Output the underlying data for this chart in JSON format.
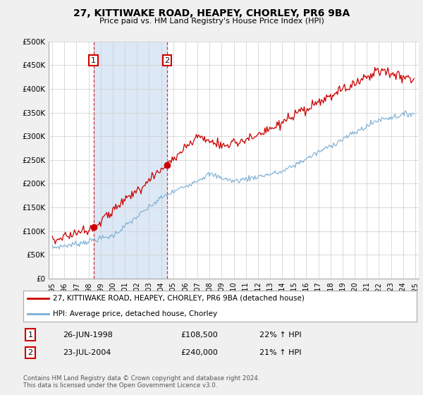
{
  "title": "27, KITTIWAKE ROAD, HEAPEY, CHORLEY, PR6 9BA",
  "subtitle": "Price paid vs. HM Land Registry's House Price Index (HPI)",
  "ylim": [
    0,
    500000
  ],
  "yticks": [
    0,
    50000,
    100000,
    150000,
    200000,
    250000,
    300000,
    350000,
    400000,
    450000,
    500000
  ],
  "ytick_labels": [
    "£0",
    "£50K",
    "£100K",
    "£150K",
    "£200K",
    "£250K",
    "£300K",
    "£350K",
    "£400K",
    "£450K",
    "£500K"
  ],
  "bg_color": "#f0f0f0",
  "plot_bg_color": "#ffffff",
  "shade_color": "#dce8f5",
  "red_color": "#cc0000",
  "blue_color": "#7aaed4",
  "transaction1_date": "26-JUN-1998",
  "transaction1_price": 108500,
  "transaction1_hpi": "22% ↑ HPI",
  "transaction2_date": "23-JUL-2004",
  "transaction2_price": 240000,
  "transaction2_hpi": "21% ↑ HPI",
  "legend_label_red": "27, KITTIWAKE ROAD, HEAPEY, CHORLEY, PR6 9BA (detached house)",
  "legend_label_blue": "HPI: Average price, detached house, Chorley",
  "footer": "Contains HM Land Registry data © Crown copyright and database right 2024.\nThis data is licensed under the Open Government Licence v3.0.",
  "x_start_year": 1995,
  "x_end_year": 2025
}
